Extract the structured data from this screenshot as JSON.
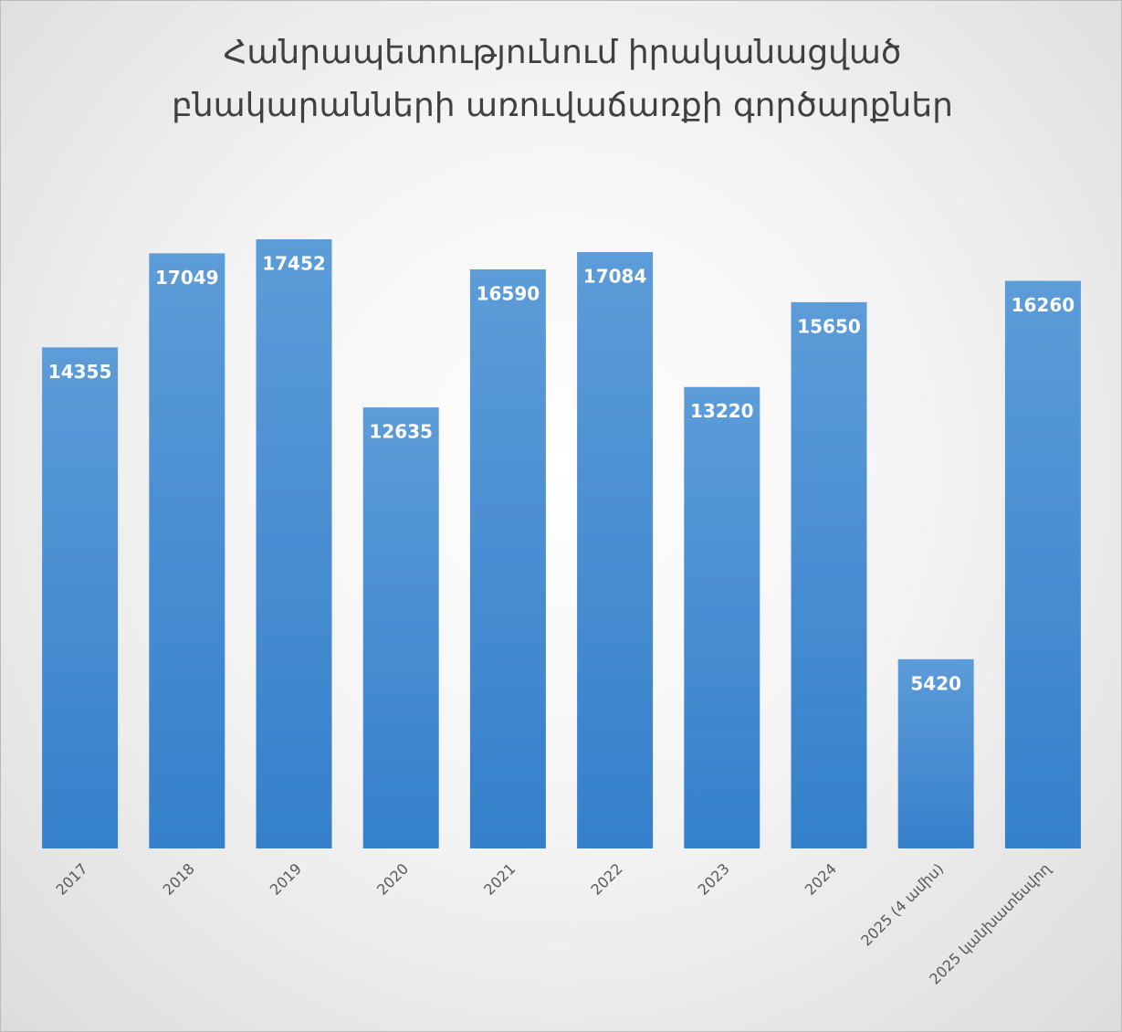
{
  "chart_data": {
    "type": "bar",
    "title": "Հանրապետությունում իրականացված բնակարանների առուվաճառքի գործարքներ",
    "categories": [
      "2017",
      "2018",
      "2019",
      "2020",
      "2021",
      "2022",
      "2023",
      "2024",
      "2025 (4 ամիս)",
      "2025 կանխատեսվող"
    ],
    "values": [
      14355,
      17049,
      17452,
      12635,
      16590,
      17084,
      13220,
      15650,
      5420,
      16260
    ],
    "color": "#4a8fd4"
  }
}
